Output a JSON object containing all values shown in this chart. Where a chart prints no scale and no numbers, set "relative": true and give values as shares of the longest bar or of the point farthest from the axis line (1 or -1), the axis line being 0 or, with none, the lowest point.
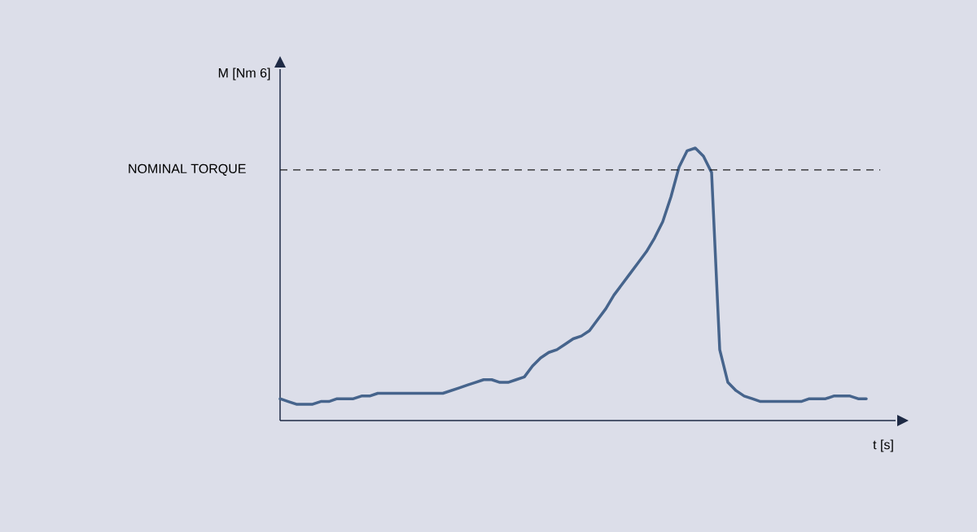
{
  "chart_data": {
    "type": "line",
    "relative": true,
    "xlabel": "t [s]",
    "annotations": [
      "M [Nm 6]"
    ],
    "categories": [
      null,
      null,
      null,
      null,
      null,
      null,
      null,
      null,
      null,
      null,
      null,
      null,
      null,
      null,
      null,
      null,
      null,
      null,
      null,
      null,
      null,
      null,
      null,
      null,
      null,
      null,
      null,
      null,
      null,
      null,
      null,
      null,
      null,
      null,
      null,
      null,
      null,
      null,
      null,
      null,
      null,
      null,
      null,
      null,
      null,
      null,
      null,
      null,
      null,
      null,
      null,
      null,
      null,
      null,
      null,
      null,
      null,
      null,
      null,
      null,
      null,
      null,
      null,
      null,
      null,
      null,
      null,
      null,
      null,
      null,
      null,
      null,
      null
    ],
    "series": [
      {
        "color": "#46648c",
        "values": [
          0.08,
          0.07,
          0.06,
          0.06,
          0.06,
          0.07,
          0.07,
          0.08,
          0.08,
          0.08,
          0.09,
          0.09,
          0.1,
          0.1,
          0.1,
          0.1,
          0.1,
          0.1,
          0.1,
          0.1,
          0.1,
          0.11,
          0.12,
          0.13,
          0.14,
          0.15,
          0.15,
          0.14,
          0.14,
          0.15,
          0.16,
          0.2,
          0.23,
          0.25,
          0.26,
          0.28,
          0.3,
          0.31,
          0.33,
          0.37,
          0.41,
          0.46,
          0.5,
          0.54,
          0.58,
          0.62,
          0.67,
          0.73,
          0.82,
          0.93,
          0.99,
          1,
          0.97,
          0.91,
          0.26,
          0.14,
          0.11,
          0.09,
          0.08,
          0.07,
          0.07,
          0.07,
          0.07,
          0.07,
          0.07,
          0.08,
          0.08,
          0.08,
          0.09,
          0.09,
          0.09,
          0.08,
          0.08
        ]
      }
    ],
    "ref_lines": [
      {
        "axis": "y",
        "value": 0.92,
        "label": "NOMINAL TORQUE",
        "color": "#1a1a1a",
        "line_style": "dashed"
      }
    ]
  }
}
